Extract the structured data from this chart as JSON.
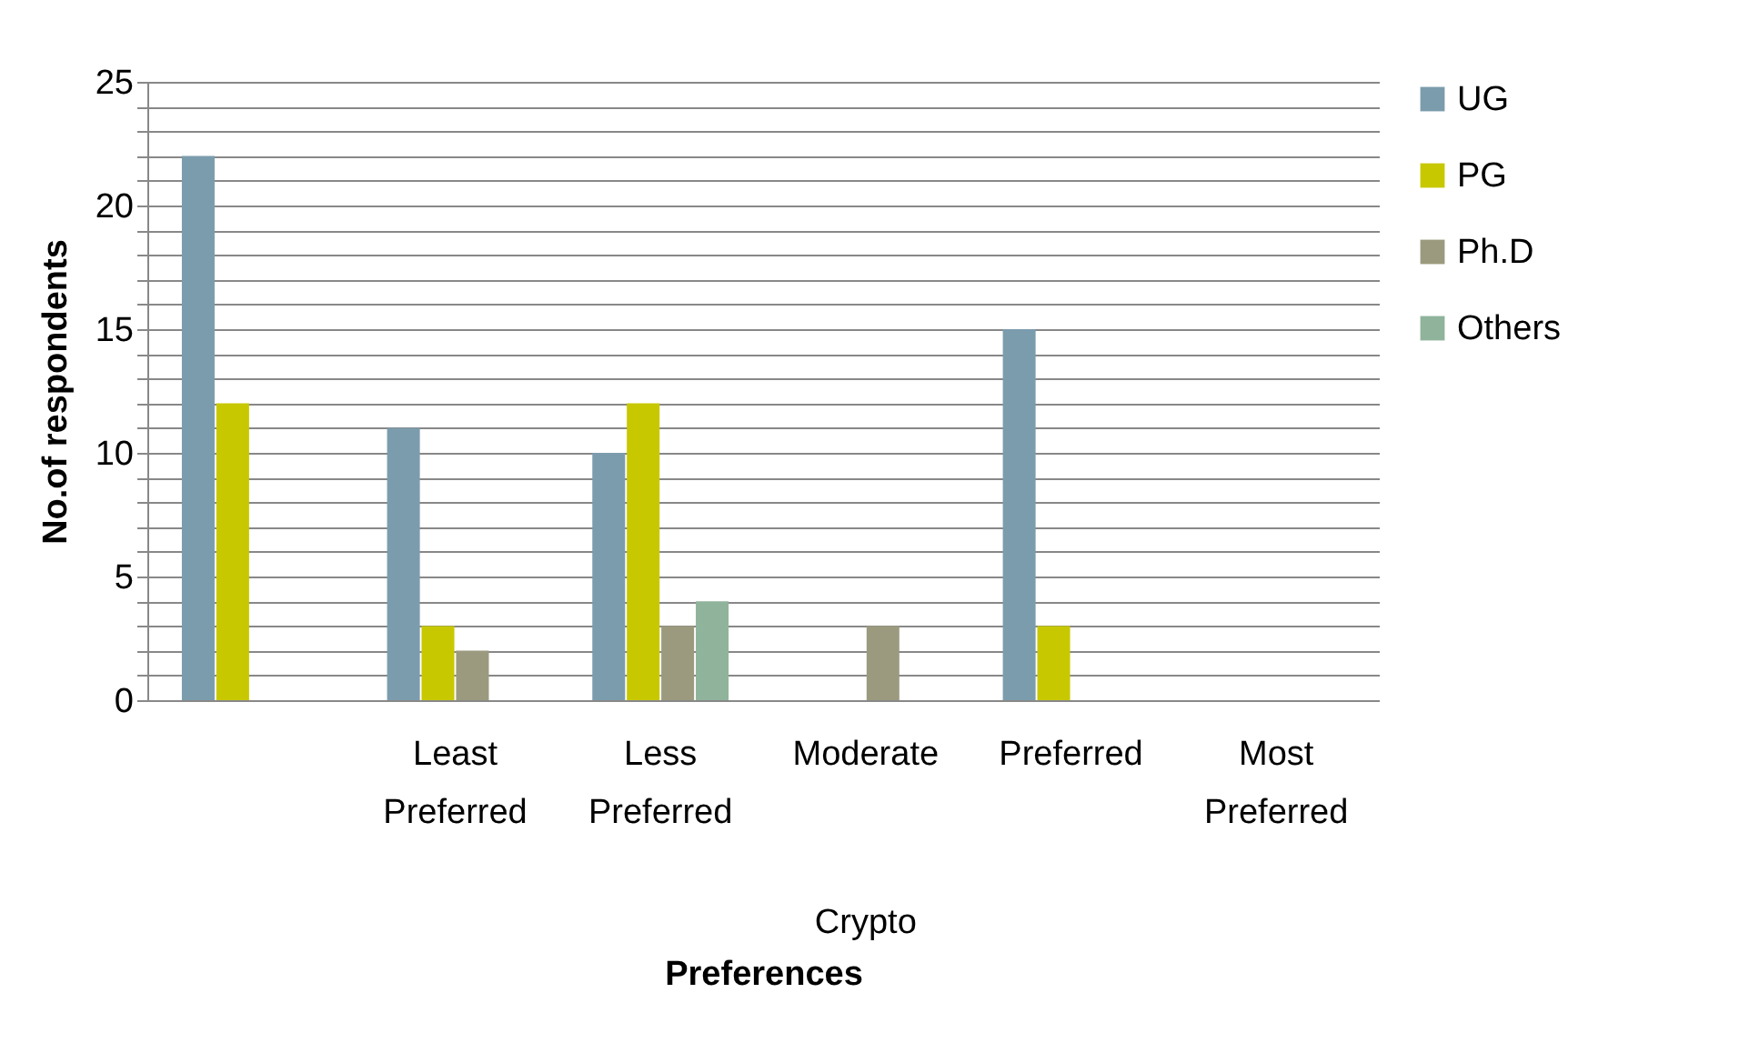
{
  "chart_data": {
    "type": "bar",
    "xlabel": "Preferences",
    "ylabel": "No.of respondents",
    "categories": [
      null,
      "Least Preferred",
      "Less Preferred",
      "Moderate",
      "Preferred",
      "Most Preferred"
    ],
    "series": [
      {
        "name": "UG",
        "color": "#7b9cad",
        "values": [
          22,
          11,
          10,
          0,
          15,
          0
        ]
      },
      {
        "name": "PG",
        "color": "#c8c800",
        "values": [
          12,
          3,
          12,
          0,
          3,
          0
        ]
      },
      {
        "name": "Ph.D",
        "color": "#9c9a7e",
        "values": [
          0,
          2,
          3,
          3,
          0,
          0
        ]
      },
      {
        "name": "Others",
        "color": "#8fb39b",
        "values": [
          0,
          0,
          4,
          0,
          0,
          0
        ]
      }
    ],
    "annotations": [
      "Crypto"
    ],
    "ylim": [
      0,
      25
    ],
    "yticks": [
      0,
      {
        "value": 1,
        "label": null
      },
      {
        "value": 2,
        "label": null
      },
      {
        "value": 3,
        "label": null
      },
      {
        "value": 4,
        "label": null
      },
      5,
      {
        "value": 6,
        "label": null
      },
      {
        "value": 7,
        "label": null
      },
      {
        "value": 8,
        "label": null
      },
      {
        "value": 9,
        "label": null
      },
      10,
      {
        "value": 11,
        "label": null
      },
      {
        "value": 12,
        "label": null
      },
      {
        "value": 13,
        "label": null
      },
      {
        "value": 14,
        "label": null
      },
      15,
      {
        "value": 16,
        "label": null
      },
      {
        "value": 17,
        "label": null
      },
      {
        "value": 18,
        "label": null
      },
      {
        "value": 19,
        "label": null
      },
      20,
      {
        "value": 21,
        "label": null
      },
      {
        "value": 22,
        "label": null
      },
      {
        "value": 23,
        "label": null
      },
      {
        "value": 24,
        "label": null
      },
      25
    ],
    "grid": "y",
    "legend": "right"
  }
}
